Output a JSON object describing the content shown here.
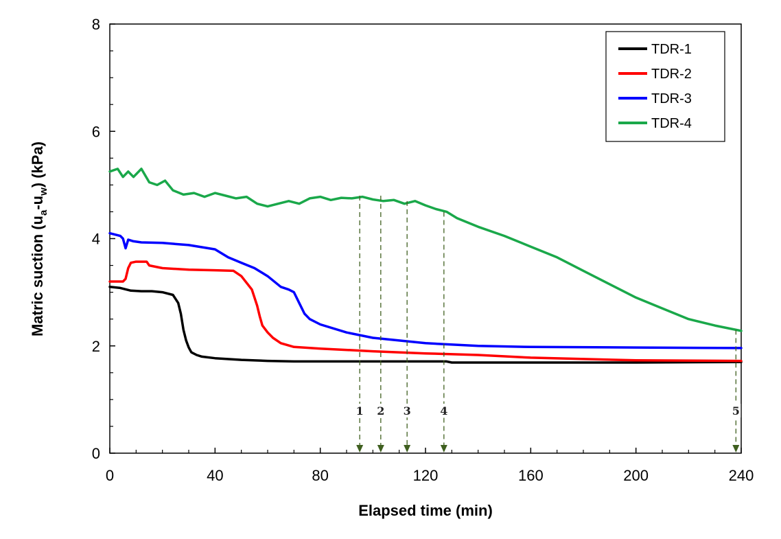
{
  "chart_data": {
    "type": "line",
    "xlabel": "Elapsed time (min)",
    "ylabel": {
      "main": "Matric suction (u",
      "sub1": "a",
      "mid": "-u",
      "sub2": "w",
      "end": ") (kPa)"
    },
    "xlim": [
      0,
      240
    ],
    "ylim": [
      0,
      8
    ],
    "xticks": [
      "0",
      "40",
      "80",
      "120",
      "160",
      "200",
      "240"
    ],
    "yticks": [
      "0",
      "2",
      "4",
      "6",
      "8"
    ],
    "grid": false,
    "legend_position": "top-right",
    "series": [
      {
        "name": "TDR-1",
        "color": "#000000",
        "x": [
          0,
          4,
          8,
          12,
          16,
          20,
          24,
          26,
          27,
          28,
          29,
          30,
          31,
          33,
          35,
          40,
          50,
          60,
          70,
          80,
          100,
          120,
          128,
          130,
          160,
          200,
          240
        ],
        "y": [
          3.1,
          3.08,
          3.03,
          3.02,
          3.02,
          3.0,
          2.95,
          2.8,
          2.6,
          2.3,
          2.1,
          1.97,
          1.88,
          1.83,
          1.8,
          1.77,
          1.74,
          1.72,
          1.71,
          1.71,
          1.71,
          1.71,
          1.71,
          1.69,
          1.69,
          1.69,
          1.7
        ]
      },
      {
        "name": "TDR-2",
        "color": "#ff0000",
        "x": [
          0,
          5,
          6,
          7,
          8,
          10,
          14,
          15,
          20,
          30,
          40,
          47,
          50,
          54,
          56,
          57,
          58,
          60,
          62,
          65,
          70,
          80,
          100,
          120,
          140,
          160,
          200,
          240
        ],
        "y": [
          3.2,
          3.2,
          3.25,
          3.45,
          3.55,
          3.57,
          3.57,
          3.5,
          3.45,
          3.42,
          3.41,
          3.4,
          3.3,
          3.05,
          2.75,
          2.55,
          2.38,
          2.25,
          2.15,
          2.05,
          1.98,
          1.95,
          1.9,
          1.86,
          1.83,
          1.78,
          1.73,
          1.72
        ]
      },
      {
        "name": "TDR-3",
        "color": "#0000ff",
        "x": [
          0,
          4,
          5,
          6,
          7,
          9,
          12,
          20,
          30,
          40,
          45,
          50,
          55,
          60,
          65,
          68,
          70,
          72,
          74,
          76,
          80,
          90,
          100,
          120,
          140,
          160,
          200,
          240
        ],
        "y": [
          4.1,
          4.05,
          4.0,
          3.82,
          3.98,
          3.95,
          3.93,
          3.92,
          3.88,
          3.8,
          3.65,
          3.55,
          3.45,
          3.3,
          3.1,
          3.05,
          3.0,
          2.8,
          2.6,
          2.5,
          2.4,
          2.25,
          2.15,
          2.05,
          2.0,
          1.98,
          1.97,
          1.96
        ]
      },
      {
        "name": "TDR-4",
        "color": "#1aa84a",
        "x": [
          0,
          3,
          5,
          7,
          9,
          12,
          15,
          18,
          21,
          24,
          28,
          32,
          36,
          40,
          44,
          48,
          52,
          56,
          60,
          64,
          68,
          72,
          76,
          80,
          84,
          88,
          92,
          96,
          100,
          104,
          108,
          112,
          116,
          120,
          124,
          128,
          132,
          140,
          150,
          160,
          170,
          180,
          190,
          200,
          210,
          220,
          230,
          240
        ],
        "y": [
          5.25,
          5.3,
          5.15,
          5.25,
          5.15,
          5.3,
          5.05,
          5.0,
          5.08,
          4.9,
          4.82,
          4.85,
          4.78,
          4.85,
          4.8,
          4.75,
          4.78,
          4.65,
          4.6,
          4.65,
          4.7,
          4.65,
          4.75,
          4.78,
          4.72,
          4.76,
          4.75,
          4.78,
          4.73,
          4.7,
          4.72,
          4.65,
          4.7,
          4.62,
          4.55,
          4.5,
          4.38,
          4.22,
          4.05,
          3.85,
          3.65,
          3.4,
          3.15,
          2.9,
          2.7,
          2.5,
          2.38,
          2.28
        ]
      }
    ],
    "annotations": [
      {
        "label": "1",
        "x": 95,
        "y_top": 4.8
      },
      {
        "label": "2",
        "x": 103,
        "y_top": 4.8
      },
      {
        "label": "3",
        "x": 113,
        "y_top": 4.7
      },
      {
        "label": "4",
        "x": 127,
        "y_top": 4.5
      },
      {
        "label": "5",
        "x": 238,
        "y_top": 2.3
      }
    ],
    "annotation_color": "#3f5f1f"
  }
}
